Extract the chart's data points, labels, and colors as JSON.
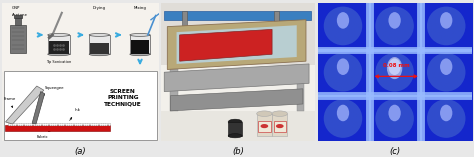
{
  "fig_width": 4.74,
  "fig_height": 1.57,
  "dpi": 100,
  "bg_color": "#e8e8e8",
  "panel_labels": [
    "(a)",
    "(b)",
    "(c)"
  ],
  "panel_label_fontsize": 6,
  "panel_a": {
    "bg": "#f0eeea",
    "arrow_color": "#3aace0",
    "fabric_color": "#cc1111",
    "screen_text": [
      "SCREEN",
      "PRINTING",
      "TECHNIQUE"
    ]
  },
  "panel_b": {
    "bg_top": "#dcdcdc",
    "bg_bottom": "#f0f0ee",
    "blue_bar": "#4a8fc4",
    "screen_blue": "#a8d0e0",
    "red_fabric": "#cc2222",
    "frame_tan": "#c8b878",
    "metal": "#a0a0a0"
  },
  "panel_c": {
    "bg": "#1a35cc",
    "cell_dark": "#1428aa",
    "cell_mid": "#2244cc",
    "bright": "#8899ee",
    "line_color": "#6688dd",
    "annotation_text": "0.08 mm",
    "annotation_color": "#ee1111"
  }
}
